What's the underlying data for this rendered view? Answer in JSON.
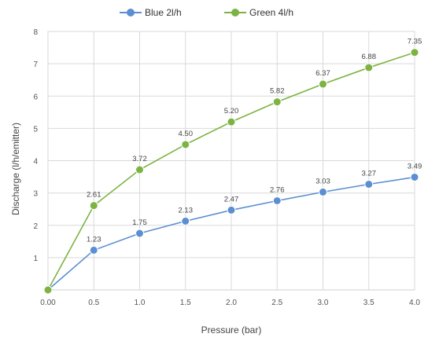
{
  "chart_data": {
    "type": "line",
    "title": "",
    "xlabel": "Pressure (bar)",
    "ylabel": "Discharge (l/h/emitter)",
    "xlim": [
      0,
      4.0
    ],
    "ylim": [
      0,
      8
    ],
    "grid": true,
    "legend_position": "top-center",
    "x_tick_labels": [
      "0.00",
      "0.5",
      "1.0",
      "1.5",
      "2.0",
      "2.5",
      "3.0",
      "3.5",
      "4.0"
    ],
    "y_tick_labels": [
      "1",
      "2",
      "3",
      "4",
      "5",
      "6",
      "7",
      "8"
    ],
    "series": [
      {
        "name": "Blue 2l/h",
        "color": "#5b8fd1",
        "x": [
          0,
          0.5,
          1.0,
          1.5,
          2.0,
          2.5,
          3.0,
          3.5,
          4.0
        ],
        "y": [
          0,
          1.23,
          1.75,
          2.13,
          2.47,
          2.76,
          3.03,
          3.27,
          3.49
        ],
        "labels": [
          "",
          "1.23",
          "1.75",
          "2.13",
          "2.47",
          "2.76",
          "3.03",
          "3.27",
          "3.49"
        ]
      },
      {
        "name": "Green 4l/h",
        "color": "#7cb342",
        "x": [
          0,
          0.5,
          1.0,
          1.5,
          2.0,
          2.5,
          3.0,
          3.5,
          4.0
        ],
        "y": [
          0,
          2.61,
          3.72,
          4.5,
          5.2,
          5.82,
          6.37,
          6.88,
          7.35
        ],
        "labels": [
          "",
          "2.61",
          "3.72",
          "4.50",
          "5.20",
          "5.82",
          "6.37",
          "6.88",
          "7.35"
        ]
      }
    ]
  }
}
